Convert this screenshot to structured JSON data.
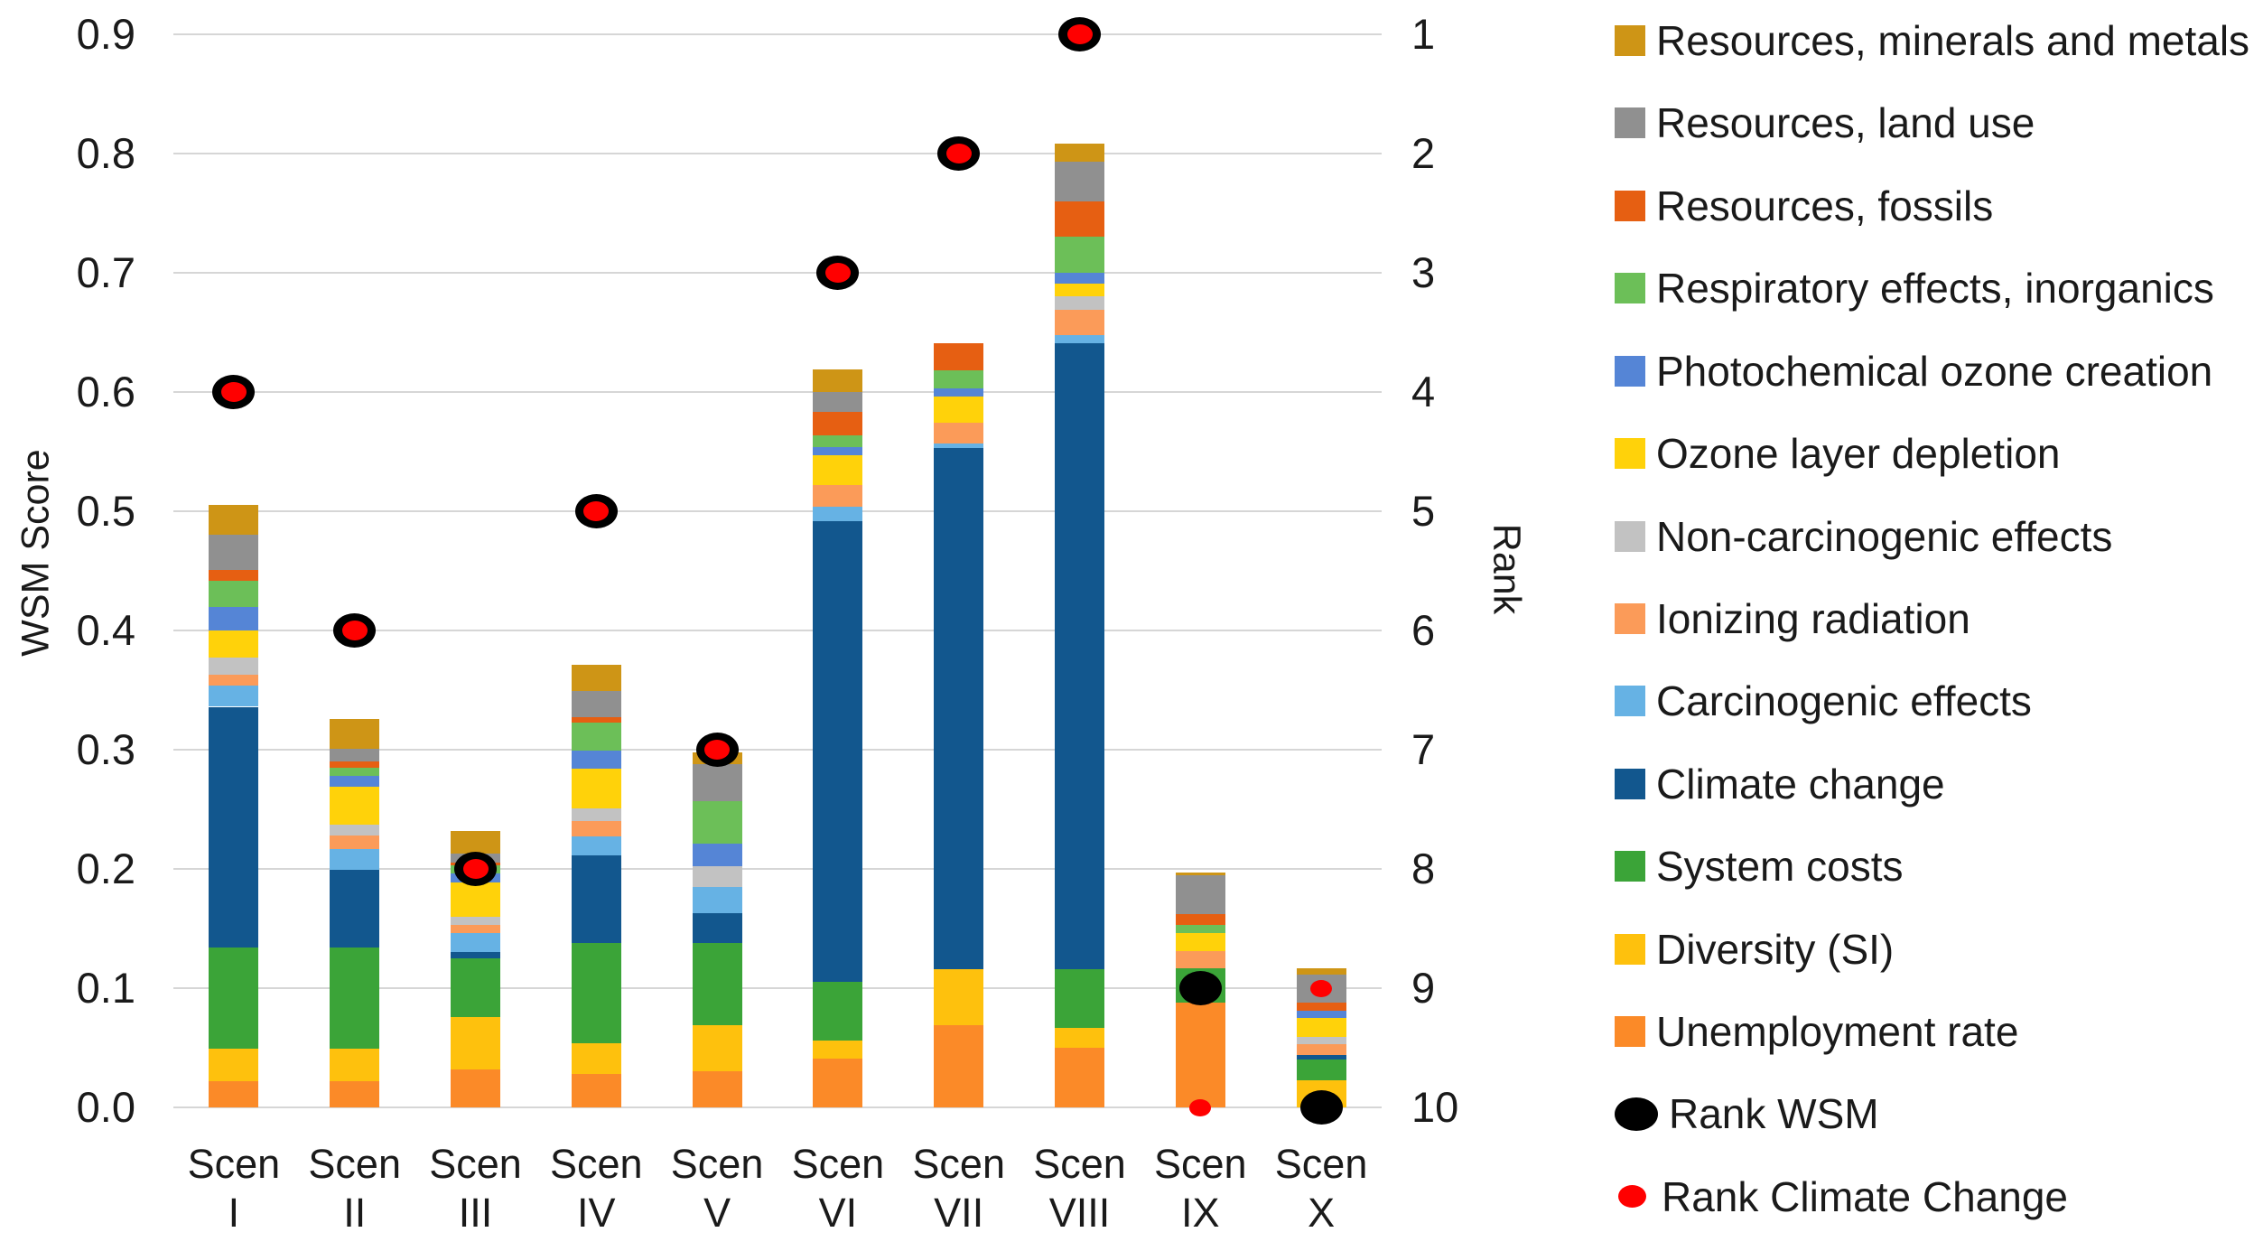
{
  "chart_data": {
    "type": "bar",
    "subtype": "stacked-bars-with-rank-markers",
    "title": "",
    "categories": [
      {
        "line1": "Scen",
        "line2": "I"
      },
      {
        "line1": "Scen",
        "line2": "II"
      },
      {
        "line1": "Scen",
        "line2": "III"
      },
      {
        "line1": "Scen",
        "line2": "IV"
      },
      {
        "line1": "Scen",
        "line2": "V"
      },
      {
        "line1": "Scen",
        "line2": "VI"
      },
      {
        "line1": "Scen",
        "line2": "VII"
      },
      {
        "line1": "Scen",
        "line2": "VIII"
      },
      {
        "line1": "Scen",
        "line2": "IX"
      },
      {
        "line1": "Scen",
        "line2": "X"
      }
    ],
    "y_left": {
      "title": "WSM Score",
      "min": 0.0,
      "max": 0.9,
      "step": 0.1,
      "tick_format": "0.0"
    },
    "y_right": {
      "title": "Rank",
      "ticks": [
        1,
        2,
        3,
        4,
        5,
        6,
        7,
        8,
        9,
        10
      ],
      "note": "rank r plotted at WSM value (10-r)/10"
    },
    "grid": "horizontal-only",
    "legend_position": "right",
    "series": [
      {
        "name": "Unemployment rate",
        "color": "#FB8A28",
        "values": [
          0.022,
          0.022,
          0.032,
          0.028,
          0.03,
          0.041,
          0.069,
          0.05,
          0.088,
          0.0
        ]
      },
      {
        "name": "Diversity (SI)",
        "color": "#FEC10D",
        "values": [
          0.027,
          0.027,
          0.044,
          0.026,
          0.039,
          0.015,
          0.047,
          0.017,
          0.0,
          0.023
        ]
      },
      {
        "name": "System costs",
        "color": "#3BA438",
        "values": [
          0.085,
          0.085,
          0.049,
          0.084,
          0.069,
          0.049,
          0.0,
          0.049,
          0.029,
          0.017
        ]
      },
      {
        "name": "Climate change",
        "color": "#12578E",
        "values": [
          0.202,
          0.065,
          0.005,
          0.073,
          0.025,
          0.387,
          0.437,
          0.525,
          0.0,
          0.004
        ]
      },
      {
        "name": "Carcinogenic effects",
        "color": "#66B2E4",
        "values": [
          0.018,
          0.018,
          0.016,
          0.016,
          0.022,
          0.012,
          0.004,
          0.007,
          0.0,
          0.0
        ]
      },
      {
        "name": "Ionizing radiation",
        "color": "#FB9B59",
        "values": [
          0.009,
          0.011,
          0.007,
          0.013,
          0.0,
          0.018,
          0.017,
          0.021,
          0.014,
          0.009
        ]
      },
      {
        "name": "Non-carcinogenic effects",
        "color": "#C2C2C2",
        "values": [
          0.014,
          0.009,
          0.007,
          0.011,
          0.017,
          0.0,
          0.0,
          0.011,
          0.0,
          0.006
        ]
      },
      {
        "name": "Ozone layer depletion",
        "color": "#FFD20A",
        "values": [
          0.023,
          0.032,
          0.029,
          0.033,
          0.0,
          0.025,
          0.022,
          0.011,
          0.015,
          0.016
        ]
      },
      {
        "name": "Photochemical ozone creation",
        "color": "#5585D6",
        "values": [
          0.02,
          0.009,
          0.007,
          0.015,
          0.019,
          0.007,
          0.007,
          0.009,
          0.0,
          0.006
        ]
      },
      {
        "name": "Respiratory effects, inorganics",
        "color": "#6CBF58",
        "values": [
          0.022,
          0.007,
          0.007,
          0.024,
          0.036,
          0.01,
          0.015,
          0.03,
          0.007,
          0.0
        ]
      },
      {
        "name": "Resources, fossils",
        "color": "#E65F12",
        "values": [
          0.009,
          0.005,
          0.002,
          0.004,
          0.0,
          0.019,
          0.023,
          0.03,
          0.009,
          0.007
        ]
      },
      {
        "name": "Resources, land use",
        "color": "#909090",
        "values": [
          0.029,
          0.011,
          0.008,
          0.022,
          0.031,
          0.017,
          0.0,
          0.033,
          0.033,
          0.023
        ]
      },
      {
        "name": "Resources, minerals and metals",
        "color": "#CE9516",
        "values": [
          0.025,
          0.025,
          0.019,
          0.022,
          0.01,
          0.019,
          0.0,
          0.015,
          0.002,
          0.006
        ]
      }
    ],
    "totals": [
      0.505,
      0.326,
      0.232,
      0.371,
      0.298,
      0.619,
      0.641,
      0.808,
      0.197,
      0.117
    ],
    "markers": {
      "rank_wsm": {
        "label": "Rank WSM",
        "color": "#000000",
        "values": [
          4,
          6,
          8,
          5,
          7,
          3,
          2,
          1,
          9,
          10
        ]
      },
      "rank_climate_change": {
        "label": "Rank Climate Change",
        "color": "#FF0000",
        "values": [
          4,
          6,
          8,
          5,
          7,
          3,
          2,
          1,
          10,
          9
        ]
      }
    }
  },
  "legend": {
    "items": [
      {
        "label": "Resources, minerals and metals",
        "color": "#CE9516",
        "shape": "square"
      },
      {
        "label": "Resources, land use",
        "color": "#909090",
        "shape": "square"
      },
      {
        "label": "Resources, fossils",
        "color": "#E65F12",
        "shape": "square"
      },
      {
        "label": "Respiratory effects, inorganics",
        "color": "#6CBF58",
        "shape": "square"
      },
      {
        "label": "Photochemical ozone creation",
        "color": "#5585D6",
        "shape": "square"
      },
      {
        "label": "Ozone layer depletion",
        "color": "#FFD20A",
        "shape": "square"
      },
      {
        "label": "Non-carcinogenic effects",
        "color": "#C2C2C2",
        "shape": "square"
      },
      {
        "label": "Ionizing radiation",
        "color": "#FB9B59",
        "shape": "square"
      },
      {
        "label": "Carcinogenic effects",
        "color": "#66B2E4",
        "shape": "square"
      },
      {
        "label": "Climate change",
        "color": "#12578E",
        "shape": "square"
      },
      {
        "label": "System costs",
        "color": "#3BA438",
        "shape": "square"
      },
      {
        "label": "Diversity (SI)",
        "color": "#FEC10D",
        "shape": "square"
      },
      {
        "label": "Unemployment rate",
        "color": "#FB8A28",
        "shape": "square"
      },
      {
        "label": "Rank WSM",
        "color": "#000000",
        "shape": "ellipse-large"
      },
      {
        "label": "Rank Climate Change",
        "color": "#FF0000",
        "shape": "ellipse-small"
      }
    ]
  }
}
